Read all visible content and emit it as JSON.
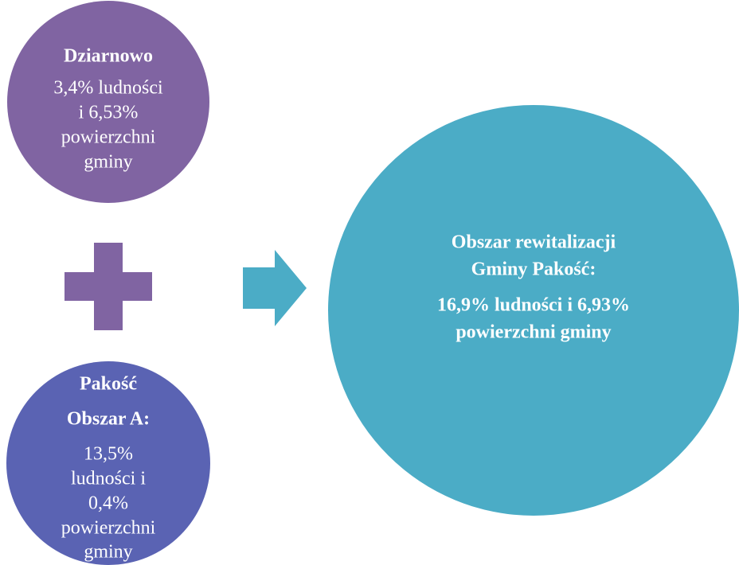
{
  "nodes": [
    {
      "title": [
        "Dziarnowo"
      ],
      "body": [
        "3,4% ludności",
        "i 6,53%",
        "powierzchni",
        "gminy"
      ]
    },
    {
      "title": [
        "Pakość",
        "Obszar A:"
      ],
      "body": [
        "13,5%",
        "ludności i",
        "0,4%",
        "powierzchni",
        "gminy"
      ]
    }
  ],
  "result": {
    "title": [
      "Obszar rewitalizacji",
      "Gminy Pakość:"
    ],
    "body": [
      "16,9% ludności i 6,93%",
      "powierzchni gminy"
    ]
  }
}
